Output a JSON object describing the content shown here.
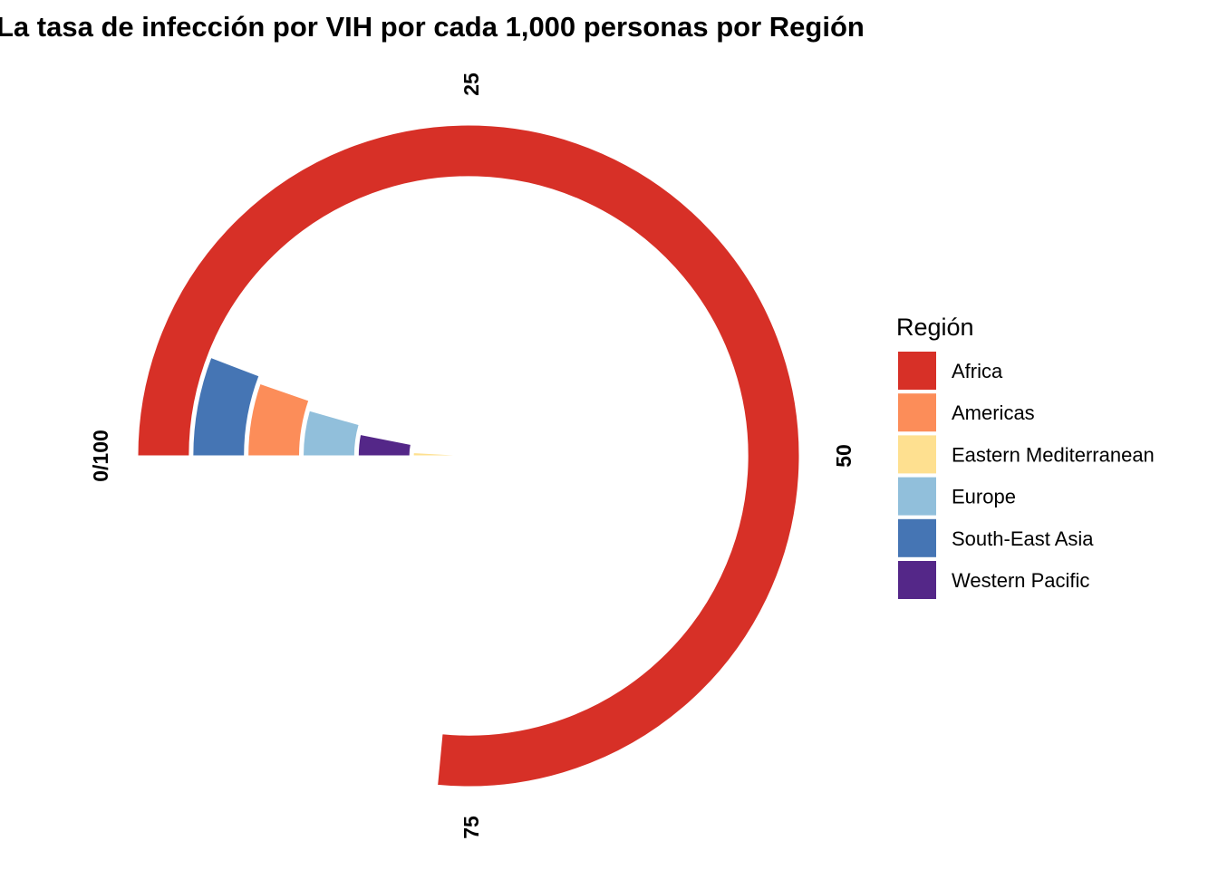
{
  "chart_data": {
    "type": "bar",
    "coord": "polar",
    "title": "La tasa de infección por VIH por cada 1,000 personas por Región",
    "theta_ticks": [
      "0/100",
      "25",
      "50",
      "75"
    ],
    "theta_range": [
      0,
      100
    ],
    "grid": false,
    "legend": {
      "title": "Región",
      "position": "right"
    },
    "categories": [
      "Africa",
      "South-East Asia",
      "Americas",
      "Europe",
      "Western Pacific",
      "Eastern Mediterranean"
    ],
    "series": [
      {
        "name": "Región",
        "values": [
          {
            "region": "Africa",
            "value": 76.5,
            "color": "#D73027"
          },
          {
            "region": "South-East Asia",
            "value": 5.8,
            "color": "#4575B4"
          },
          {
            "region": "Americas",
            "value": 5.3,
            "color": "#FC8D59"
          },
          {
            "region": "Europe",
            "value": 4.4,
            "color": "#91BFDB"
          },
          {
            "region": "Western Pacific",
            "value": 3.1,
            "color": "#542788"
          },
          {
            "region": "Eastern Mediterranean",
            "value": 0.9,
            "color": "#FEE090"
          }
        ]
      }
    ]
  },
  "legend_items": [
    {
      "label": "Africa",
      "color": "#D73027"
    },
    {
      "label": "Americas",
      "color": "#FC8D59"
    },
    {
      "label": "Eastern Mediterranean",
      "color": "#FEE090"
    },
    {
      "label": "Europe",
      "color": "#91BFDB"
    },
    {
      "label": "South-East Asia",
      "color": "#4575B4"
    },
    {
      "label": "Western Pacific",
      "color": "#542788"
    }
  ]
}
